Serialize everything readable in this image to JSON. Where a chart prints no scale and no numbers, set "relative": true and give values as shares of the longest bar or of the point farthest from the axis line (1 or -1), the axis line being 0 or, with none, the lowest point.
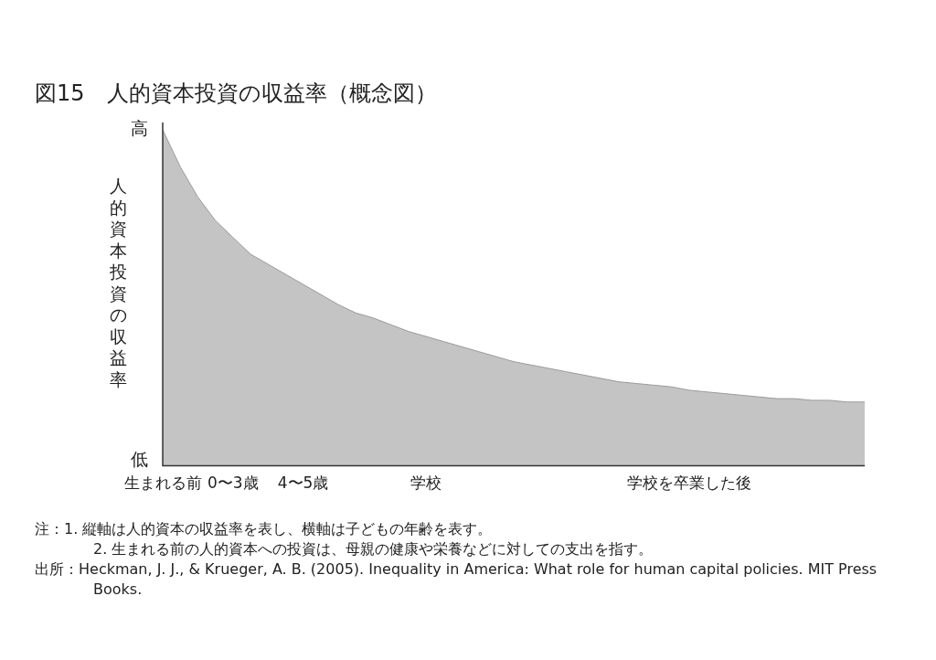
{
  "chart_data": {
    "type": "area",
    "title": "図15　人的資本投資の収益率（概念図）",
    "ylabel": "人的資本投資の収益率",
    "relative": true,
    "grid": false,
    "legend": false,
    "categories": [
      "生まれる前",
      null,
      null,
      null,
      "0〜3歳",
      null,
      null,
      null,
      "4〜5歳",
      null,
      null,
      null,
      null,
      null,
      null,
      "学校",
      null,
      null,
      null,
      null,
      null,
      null,
      null,
      null,
      null,
      null,
      null,
      null,
      null,
      null,
      "学校を卒業した後",
      null,
      null,
      null,
      null,
      null,
      null,
      null,
      null,
      null,
      null
    ],
    "series": [
      {
        "color": "#c4c4c4",
        "values": [
          1.0,
          0.89,
          0.8,
          0.73,
          0.68,
          0.63,
          0.6,
          0.57,
          0.54,
          0.51,
          0.48,
          0.455,
          0.44,
          0.42,
          0.4,
          0.385,
          0.37,
          0.355,
          0.34,
          0.325,
          0.31,
          0.3,
          0.29,
          0.28,
          0.27,
          0.26,
          0.25,
          0.245,
          0.24,
          0.235,
          0.225,
          0.22,
          0.215,
          0.21,
          0.205,
          0.2,
          0.2,
          0.195,
          0.195,
          0.19,
          0.19
        ]
      }
    ],
    "annotations": [
      "高",
      "低",
      "注：1. 縦軸は人的資本の収益率を表し、横軸は子どもの年齢を表す。",
      "2. 生まれる前の人的資本への投資は、母親の健康や栄養などに対しての支出を指す。",
      "出所：Heckman, J. J., & Krueger, A. B. (2005). Inequality in America: What role for human capital policies. MIT Press Books."
    ]
  }
}
